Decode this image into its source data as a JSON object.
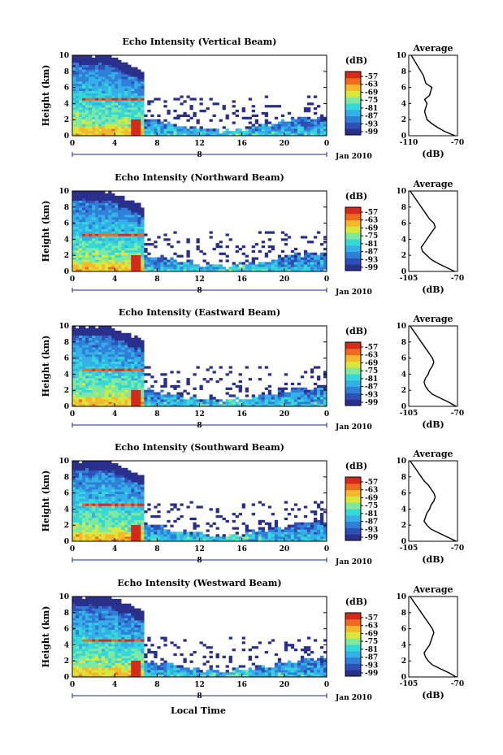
{
  "figure": {
    "xlabel": "Local Time",
    "date_label": "Jan 2010",
    "day_label": "8",
    "avg_title": "Average",
    "cbar_title": "(dB)",
    "ylabel": "Height (km)",
    "avg_xlabel": "(dB)"
  },
  "colors": {
    "scale": [
      "#2a2f8c",
      "#2f4fb8",
      "#2f7fd8",
      "#33b0e8",
      "#35d8d8",
      "#7ee8a0",
      "#d8e83a",
      "#f5b82a",
      "#f06a1e",
      "#d42a1a"
    ],
    "sparse": "#2f3a96"
  },
  "chart_data": [
    {
      "type": "heatmap",
      "title": "Echo Intensity (Vertical Beam)",
      "xlabel": "Local Time",
      "ylabel": "Height (km)",
      "x_ticks": [
        "0",
        "4",
        "8",
        "12",
        "16",
        "20",
        "0"
      ],
      "y_ticks": [
        "0",
        "2",
        "4",
        "6",
        "8",
        "10"
      ],
      "xlim": [
        0,
        24
      ],
      "ylim": [
        0,
        10
      ],
      "colorbar": {
        "label": "(dB)",
        "ticks": [
          "-57",
          "-63",
          "-69",
          "-75",
          "-81",
          "-87",
          "-93",
          "-99"
        ]
      },
      "average_profile": {
        "title": "Average",
        "xlabel": "(dB)",
        "xlim": [
          -110,
          -70
        ],
        "x_ticks": [
          "-110",
          "-70"
        ],
        "height": [
          0,
          0.5,
          1,
          1.5,
          2,
          2.5,
          3,
          3.5,
          4,
          4.5,
          5,
          5.5,
          6,
          6.5,
          7,
          7.5,
          8,
          8.5,
          9,
          9.5,
          10
        ],
        "value": [
          -72,
          -80,
          -86,
          -91,
          -95,
          -96,
          -97,
          -96,
          -95,
          -97,
          -93,
          -92,
          -91,
          -96,
          -97,
          -98,
          -100,
          -102,
          -104,
          -106,
          -108
        ]
      }
    },
    {
      "type": "heatmap",
      "title": "Echo Intensity (Northward Beam)",
      "xlabel": "Local Time",
      "ylabel": "Height (km)",
      "x_ticks": [
        "0",
        "4",
        "8",
        "12",
        "16",
        "20",
        "0"
      ],
      "y_ticks": [
        "0",
        "2",
        "4",
        "6",
        "8",
        "10"
      ],
      "xlim": [
        0,
        24
      ],
      "ylim": [
        0,
        10
      ],
      "colorbar": {
        "label": "(dB)",
        "ticks": [
          "-57",
          "-63",
          "-69",
          "-75",
          "-81",
          "-87",
          "-93",
          "-99"
        ]
      },
      "average_profile": {
        "title": "Average",
        "xlabel": "(dB)",
        "xlim": [
          -105,
          -70
        ],
        "x_ticks": [
          "-105",
          "-70"
        ],
        "height": [
          0,
          0.5,
          1,
          1.5,
          2,
          2.5,
          3,
          3.5,
          4,
          4.5,
          5,
          5.5,
          6,
          6.5,
          7,
          7.5,
          8,
          8.5,
          9,
          9.5,
          10
        ],
        "value": [
          -72,
          -78,
          -84,
          -89,
          -92,
          -95,
          -96,
          -94,
          -92,
          -90,
          -88,
          -86,
          -87,
          -90,
          -92,
          -94,
          -96,
          -98,
          -100,
          -102,
          -104
        ]
      }
    },
    {
      "type": "heatmap",
      "title": "Echo Intensity (Eastward Beam)",
      "xlabel": "Local Time",
      "ylabel": "Height (km)",
      "x_ticks": [
        "0",
        "4",
        "8",
        "12",
        "16",
        "20",
        "0"
      ],
      "y_ticks": [
        "0",
        "2",
        "4",
        "6",
        "8",
        "10"
      ],
      "xlim": [
        0,
        24
      ],
      "ylim": [
        0,
        10
      ],
      "colorbar": {
        "label": "(dB)",
        "ticks": [
          "-57",
          "-63",
          "-69",
          "-75",
          "-81",
          "-87",
          "-93",
          "-99"
        ]
      },
      "average_profile": {
        "title": "Average",
        "xlabel": "(dB)",
        "xlim": [
          -105,
          -70
        ],
        "x_ticks": [
          "-105",
          "-70"
        ],
        "height": [
          0,
          0.5,
          1,
          1.5,
          2,
          2.5,
          3,
          3.5,
          4,
          4.5,
          5,
          5.5,
          6,
          6.5,
          7,
          7.5,
          8,
          8.5,
          9,
          9.5,
          10
        ],
        "value": [
          -71,
          -76,
          -82,
          -88,
          -91,
          -93,
          -94,
          -93,
          -91,
          -90,
          -88,
          -87,
          -88,
          -90,
          -92,
          -94,
          -96,
          -98,
          -100,
          -102,
          -104
        ]
      }
    },
    {
      "type": "heatmap",
      "title": "Echo Intensity (Southward Beam)",
      "xlabel": "Local Time",
      "ylabel": "Height (km)",
      "x_ticks": [
        "0",
        "4",
        "8",
        "12",
        "16",
        "20",
        "0"
      ],
      "y_ticks": [
        "0",
        "2",
        "4",
        "6",
        "8",
        "10"
      ],
      "xlim": [
        0,
        24
      ],
      "ylim": [
        0,
        10
      ],
      "colorbar": {
        "label": "(dB)",
        "ticks": [
          "-57",
          "-63",
          "-69",
          "-75",
          "-81",
          "-87",
          "-93",
          "-99"
        ]
      },
      "average_profile": {
        "title": "Average",
        "xlabel": "(dB)",
        "xlim": [
          -105,
          -70
        ],
        "x_ticks": [
          "-105",
          "-70"
        ],
        "height": [
          0,
          0.5,
          1,
          1.5,
          2,
          2.5,
          3,
          3.5,
          4,
          4.5,
          5,
          5.5,
          6,
          6.5,
          7,
          7.5,
          8,
          8.5,
          9,
          9.5,
          10
        ],
        "value": [
          -71,
          -77,
          -83,
          -89,
          -92,
          -94,
          -93,
          -92,
          -90,
          -89,
          -87,
          -86,
          -87,
          -89,
          -91,
          -94,
          -96,
          -98,
          -100,
          -102,
          -104
        ]
      }
    },
    {
      "type": "heatmap",
      "title": "Echo Intensity (Westward Beam)",
      "xlabel": "Local Time",
      "ylabel": "Height (km)",
      "x_ticks": [
        "0",
        "4",
        "8",
        "12",
        "16",
        "20",
        "0"
      ],
      "y_ticks": [
        "0",
        "2",
        "4",
        "6",
        "8",
        "10"
      ],
      "xlim": [
        0,
        24
      ],
      "ylim": [
        0,
        10
      ],
      "colorbar": {
        "label": "(dB)",
        "ticks": [
          "-57",
          "-63",
          "-69",
          "-75",
          "-81",
          "-87",
          "-93",
          "-99"
        ]
      },
      "average_profile": {
        "title": "Average",
        "xlabel": "(dB)",
        "xlim": [
          -105,
          -70
        ],
        "x_ticks": [
          "-105",
          "-70"
        ],
        "height": [
          0,
          0.5,
          1,
          1.5,
          2,
          2.5,
          3,
          3.5,
          4,
          4.5,
          5,
          5.5,
          6,
          6.5,
          7,
          7.5,
          8,
          8.5,
          9,
          9.5,
          10
        ],
        "value": [
          -71,
          -76,
          -82,
          -88,
          -91,
          -93,
          -94,
          -92,
          -90,
          -89,
          -88,
          -87,
          -88,
          -90,
          -92,
          -94,
          -96,
          -98,
          -100,
          -102,
          -104
        ]
      }
    }
  ]
}
